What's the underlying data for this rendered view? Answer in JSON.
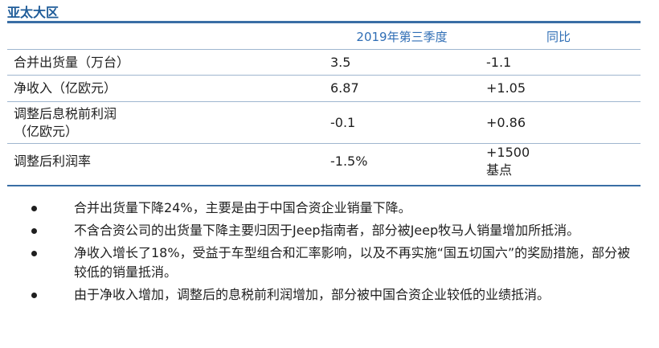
{
  "section": {
    "title": "亚太大区"
  },
  "table": {
    "headers": [
      "",
      "2019年第三季度",
      "同比"
    ],
    "rows": [
      {
        "label": "合并出货量（万台）",
        "value": "3.5",
        "yoy": "-1.1"
      },
      {
        "label": "净收入（亿欧元）",
        "value": "6.87",
        "yoy": "+1.05"
      },
      {
        "label": "调整后息税前利润\n（亿欧元）",
        "value": "-0.1",
        "yoy": "+0.86"
      },
      {
        "label": "调整后利润率",
        "value": "-1.5%",
        "yoy": "+1500\n基点"
      }
    ]
  },
  "bullets": [
    "合并出货量下降24%，主要是由于中国合资企业销量下降。",
    "不含合资公司的出货量下降主要归因于Jeep指南者，部分被Jeep牧马人销量增加所抵消。",
    "净收入增长了18%，受益于车型组合和汇率影响，以及不再实施“国五切国六”的奖励措施，部分被较低的销量抵消。",
    "由于净收入增加，调整后的息税前利润增加，部分被中国合资企业较低的业绩抵消。"
  ],
  "colors": {
    "accent": "#1f5c99",
    "header_text": "#2f6eb5",
    "rule": "#3a6ea5"
  }
}
